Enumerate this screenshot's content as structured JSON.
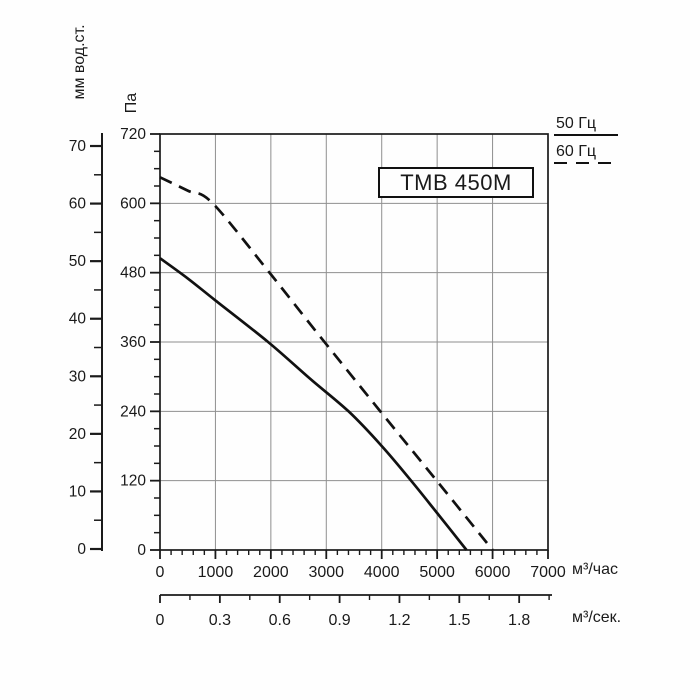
{
  "title_box": {
    "label": "TMB 450M"
  },
  "legend": {
    "items": [
      {
        "label": "50 Гц",
        "line_style": "solid"
      },
      {
        "label": "60 Гц",
        "line_style": "dashed"
      }
    ]
  },
  "chart_data": {
    "type": "line",
    "title": "TMB 450M",
    "description": "Fan performance curves: pressure vs air flow",
    "grid": true,
    "grid_color": "#8f8f8f",
    "line_color": "#111111",
    "text_color": "#1a1a1a",
    "legend_position": "top-right",
    "axes": {
      "y_primary": {
        "label": "Па",
        "tick_values": [
          720,
          600,
          480,
          360,
          240,
          120,
          0
        ],
        "minor_step": 30,
        "range": [
          0,
          720
        ]
      },
      "y_secondary": {
        "label": "мм вод.ст.",
        "tick_values": [
          70,
          60,
          50,
          40,
          30,
          20,
          10,
          0
        ],
        "minor_step": 5,
        "range": [
          0,
          70
        ]
      },
      "x_primary": {
        "label": "м³/час",
        "tick_values": [
          0,
          1000,
          2000,
          3000,
          4000,
          5000,
          6000,
          7000
        ],
        "minor_step": 200,
        "range": [
          0,
          7000
        ]
      },
      "x_secondary": {
        "label": "м³/сек.",
        "tick_values": [
          0,
          0.3,
          0.6,
          0.9,
          1.2,
          1.5,
          1.8
        ],
        "tick_labels": [
          "0",
          "0.3",
          "0.6",
          "0.9",
          "1.2",
          "1.5",
          "1.8"
        ],
        "minor_step": 0.15,
        "minor_max": 1.95,
        "scale_to_primary": 3600
      }
    },
    "series": [
      {
        "name": "50 Гц",
        "style": "solid",
        "points_flow_pa": [
          [
            0,
            505
          ],
          [
            500,
            470
          ],
          [
            1000,
            432
          ],
          [
            1950,
            360
          ],
          [
            2700,
            297
          ],
          [
            3400,
            240
          ],
          [
            4000,
            180
          ],
          [
            4530,
            120
          ],
          [
            5000,
            64
          ],
          [
            5530,
            0
          ]
        ]
      },
      {
        "name": "60 Гц",
        "style": "dashed",
        "points_flow_pa": [
          [
            0,
            645
          ],
          [
            500,
            622
          ],
          [
            950,
            600
          ],
          [
            2000,
            477
          ],
          [
            2850,
            374
          ],
          [
            3950,
            243
          ],
          [
            5000,
            119
          ],
          [
            6000,
            0
          ]
        ]
      }
    ]
  }
}
